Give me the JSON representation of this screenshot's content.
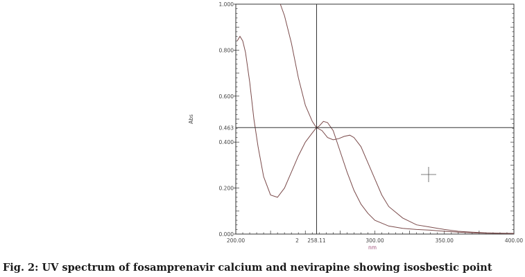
{
  "caption": "Fig. 2: UV spectrum of fosamprenavir calcium and nevirapine showing isosbestic point",
  "chart_data": {
    "type": "line",
    "xlabel": "nm",
    "ylabel": "Abs",
    "xlim": [
      200,
      400
    ],
    "ylim": [
      0,
      1
    ],
    "x_ticks": [
      {
        "value": 200,
        "label": "200.00"
      },
      {
        "value": 300,
        "label": "300.00"
      },
      {
        "value": 350,
        "label": "350.00"
      },
      {
        "value": 400,
        "label": "400.00"
      }
    ],
    "y_ticks": [
      {
        "value": 0,
        "label": "0.000"
      },
      {
        "value": 0.2,
        "label": "0.200"
      },
      {
        "value": 0.4,
        "label": "0.400"
      },
      {
        "value": 0.6,
        "label": "0.600"
      },
      {
        "value": 0.8,
        "label": "0.800"
      },
      {
        "value": 1.0,
        "label": "1.000"
      }
    ],
    "cursor": {
      "x": 258.11,
      "y": 0.463,
      "x_label": "258.11",
      "y_label": "0.463",
      "index_label": "2",
      "line_color": "#333333"
    },
    "grid": false,
    "series": [
      {
        "color": "#7a4a4a",
        "x": [
          201,
          203,
          205,
          207,
          210,
          213,
          216,
          220,
          225,
          230,
          235,
          240,
          245,
          250,
          255,
          258,
          262,
          266,
          270,
          274,
          278,
          282,
          285,
          290,
          295,
          300,
          305,
          310,
          320,
          330,
          340,
          350,
          360,
          370,
          380,
          390,
          400
        ],
        "y": [
          0.84,
          0.86,
          0.84,
          0.79,
          0.66,
          0.5,
          0.38,
          0.25,
          0.17,
          0.16,
          0.2,
          0.27,
          0.34,
          0.4,
          0.44,
          0.463,
          0.45,
          0.42,
          0.41,
          0.415,
          0.425,
          0.43,
          0.42,
          0.38,
          0.31,
          0.24,
          0.17,
          0.12,
          0.07,
          0.04,
          0.03,
          0.02,
          0.012,
          0.008,
          0.005,
          0.004,
          0.003
        ]
      },
      {
        "color": "#7a4a4a",
        "x": [
          232,
          235,
          240,
          245,
          250,
          255,
          258,
          260,
          263,
          266,
          270,
          275,
          280,
          285,
          290,
          295,
          300,
          310,
          320,
          330,
          340,
          350,
          360,
          370,
          380,
          390,
          400
        ],
        "y": [
          1.0,
          0.95,
          0.83,
          0.68,
          0.56,
          0.49,
          0.463,
          0.47,
          0.49,
          0.485,
          0.45,
          0.36,
          0.27,
          0.19,
          0.13,
          0.09,
          0.06,
          0.035,
          0.025,
          0.02,
          0.017,
          0.012,
          0.008,
          0.005,
          0.004,
          0.003,
          0.002
        ]
      }
    ]
  }
}
